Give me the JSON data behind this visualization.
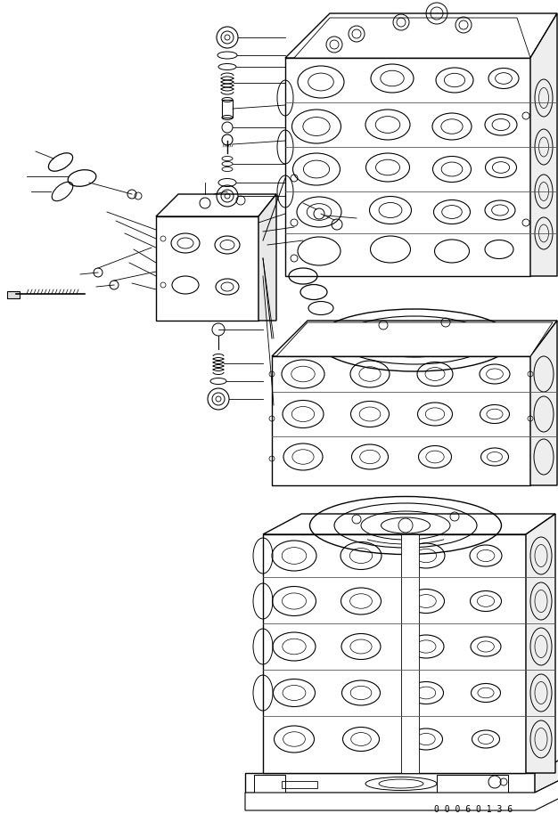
{
  "background_color": "#ffffff",
  "line_color": "#000000",
  "figure_width": 6.26,
  "figure_height": 9.32,
  "dpi": 100,
  "part_number": "0 0 0 6 0 1 3 6"
}
